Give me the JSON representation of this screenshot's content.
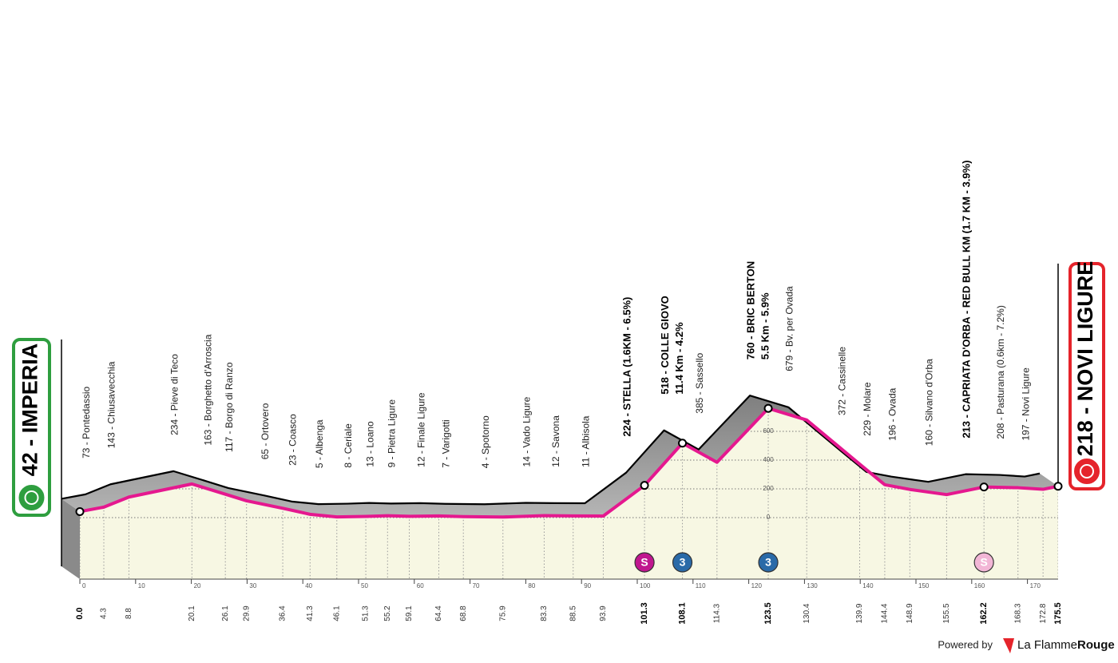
{
  "chart_data": {
    "type": "profile",
    "xlim": [
      0,
      175.5
    ],
    "xticks": [
      0,
      10,
      20,
      30,
      40,
      50,
      60,
      70,
      80,
      90,
      100,
      110,
      120,
      130,
      140,
      150,
      160,
      170
    ],
    "yticks": [
      0,
      200,
      400,
      600
    ],
    "line_color": "#e5188f",
    "points": [
      {
        "km": 0,
        "km_label": "0.0",
        "elevation": 42,
        "label": "42 - IMPERIA",
        "box": "#2e9e3f",
        "bold": true
      },
      {
        "km": 4.3,
        "elevation": 73,
        "label": "73 - Pontedassio"
      },
      {
        "km": 8.8,
        "elevation": 143,
        "label": "143 - Chiusavecchia"
      },
      {
        "km": 20.1,
        "elevation": 234,
        "label": "234 - Pieve di Teco"
      },
      {
        "km": 26.1,
        "elevation": 163,
        "label": "163 - Borghetto d'Arroscia"
      },
      {
        "km": 29.9,
        "elevation": 117,
        "label": "117 - Borgo di Ranzo"
      },
      {
        "km": 36.4,
        "elevation": 65,
        "label": "65 - Ortovero"
      },
      {
        "km": 41.3,
        "elevation": 23,
        "label": "23 - Coasco"
      },
      {
        "km": 46.1,
        "elevation": 5,
        "label": "5 - Albenga"
      },
      {
        "km": 51.3,
        "elevation": 8,
        "label": "8 - Ceriale"
      },
      {
        "km": 55.2,
        "elevation": 13,
        "label": "13 - Loano"
      },
      {
        "km": 59.1,
        "elevation": 9,
        "label": "9 - Pietra Ligure"
      },
      {
        "km": 64.4,
        "elevation": 12,
        "label": "12 - Finale Ligure"
      },
      {
        "km": 68.8,
        "elevation": 7,
        "label": "7 - Varigotti"
      },
      {
        "km": 75.9,
        "elevation": 4,
        "label": "4 - Spotorno"
      },
      {
        "km": 83.3,
        "elevation": 14,
        "label": "14 - Vado Ligure"
      },
      {
        "km": 88.5,
        "elevation": 12,
        "label": "12 - Savona"
      },
      {
        "km": 93.9,
        "elevation": 11,
        "label": "11 - Albisola"
      },
      {
        "km": 101.3,
        "elevation": 224,
        "label": "224 - STELLA (1.6KM - 6.5%)",
        "bold": true
      },
      {
        "km": 108.1,
        "elevation": 518,
        "label": "518 - COLLE GIOVO",
        "sublabel": "11.4 Km - 4.2%",
        "bold": true
      },
      {
        "km": 114.3,
        "elevation": 385,
        "label": "385 - Sassello"
      },
      {
        "km": 123.5,
        "elevation": 760,
        "label": "760 - BRIC BERTON",
        "sublabel": "5.5 Km - 5.9%",
        "bold": true
      },
      {
        "km": 130.4,
        "elevation": 679,
        "label": "679 - Bv. per Ovada"
      },
      {
        "km": 139.9,
        "elevation": 372,
        "label": "372 - Cassinelle"
      },
      {
        "km": 144.4,
        "elevation": 229,
        "label": "229 - Molare"
      },
      {
        "km": 148.9,
        "elevation": 196,
        "label": "196 - Ovada"
      },
      {
        "km": 155.5,
        "elevation": 160,
        "label": "160 - Silvano d'Orba"
      },
      {
        "km": 162.2,
        "elevation": 213,
        "label": "213 - CAPRIATA D'ORBA - RED BULL KM (1.7 KM - 3.9%)",
        "bold": true
      },
      {
        "km": 168.3,
        "elevation": 208,
        "label": "208 - Pasturana (0.6km - 7.2%)"
      },
      {
        "km": 172.8,
        "elevation": 197,
        "label": "197 - Novi Ligure"
      },
      {
        "km": 175.5,
        "elevation": 218,
        "label": "218 - NOVI LIGURE",
        "box": "#e5242b",
        "bold": true
      }
    ],
    "climb_icons": [
      {
        "km": 101.3,
        "label": "S",
        "color": "#c0168f"
      },
      {
        "km": 108.1,
        "label": "3",
        "color": "#2a6aa8"
      },
      {
        "km": 123.5,
        "label": "3",
        "color": "#2a6aa8"
      },
      {
        "km": 162.2,
        "label": "S",
        "color": "#f2b6d6"
      }
    ]
  },
  "footer": {
    "powered": "Powered by",
    "brand1": "La Flamme",
    "brand2": "Rouge"
  }
}
